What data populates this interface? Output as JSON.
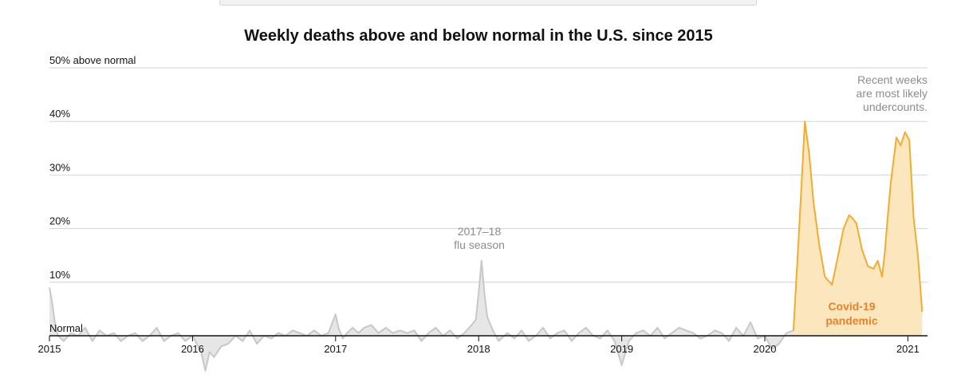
{
  "chart_data": {
    "type": "area",
    "title": "Weekly deaths above and below normal in the U.S. since 2015",
    "xlabel": "",
    "ylabel": "",
    "ylim": [
      -8,
      50
    ],
    "y_ticks": [
      {
        "value": 50,
        "label": "50% above normal"
      },
      {
        "value": 40,
        "label": "40%"
      },
      {
        "value": 30,
        "label": "30%"
      },
      {
        "value": 20,
        "label": "20%"
      },
      {
        "value": 10,
        "label": "10%"
      },
      {
        "value": 0,
        "label": "Normal"
      }
    ],
    "x_ticks": [
      {
        "value": 2015,
        "label": "2015"
      },
      {
        "value": 2016,
        "label": "2016"
      },
      {
        "value": 2017,
        "label": "2017"
      },
      {
        "value": 2018,
        "label": "2018"
      },
      {
        "value": 2019,
        "label": "2019"
      },
      {
        "value": 2020,
        "label": "2020"
      },
      {
        "value": 2021,
        "label": "2021"
      }
    ],
    "grid": true,
    "series": [
      {
        "color": "#c8c8c8",
        "fill": "#e6e6e6",
        "x": [
          2015.0,
          2015.02,
          2015.04,
          2015.06,
          2015.1,
          2015.15,
          2015.2,
          2015.25,
          2015.3,
          2015.35,
          2015.4,
          2015.45,
          2015.5,
          2015.55,
          2015.6,
          2015.65,
          2015.7,
          2015.75,
          2015.8,
          2015.85,
          2015.9,
          2015.95,
          2016.0,
          2016.03,
          2016.06,
          2016.09,
          2016.12,
          2016.15,
          2016.2,
          2016.25,
          2016.3,
          2016.35,
          2016.4,
          2016.45,
          2016.5,
          2016.55,
          2016.6,
          2016.65,
          2016.7,
          2016.75,
          2016.8,
          2016.85,
          2016.9,
          2016.95,
          2017.0,
          2017.02,
          2017.05,
          2017.08,
          2017.12,
          2017.16,
          2017.2,
          2017.25,
          2017.3,
          2017.35,
          2017.4,
          2017.45,
          2017.5,
          2017.55,
          2017.6,
          2017.65,
          2017.7,
          2017.75,
          2017.8,
          2017.85,
          2017.9,
          2017.95,
          2017.98,
          2018.0,
          2018.02,
          2018.04,
          2018.06,
          2018.1,
          2018.14,
          2018.2,
          2018.25,
          2018.3,
          2018.35,
          2018.4,
          2018.45,
          2018.5,
          2018.55,
          2018.6,
          2018.65,
          2018.7,
          2018.75,
          2018.8,
          2018.85,
          2018.9,
          2018.95,
          2019.0,
          2019.05,
          2019.1,
          2019.15,
          2019.2,
          2019.25,
          2019.3,
          2019.35,
          2019.4,
          2019.45,
          2019.5,
          2019.55,
          2019.6,
          2019.65,
          2019.7,
          2019.75,
          2019.8,
          2019.85,
          2019.9,
          2019.95,
          2020.0,
          2020.05,
          2020.1,
          2020.15,
          2020.2
        ],
        "values": [
          9,
          6,
          2,
          0,
          -1,
          0.5,
          0,
          1.5,
          -1,
          1,
          0,
          0.5,
          -1,
          0,
          0.5,
          -1,
          0,
          1.5,
          -1,
          0,
          0.5,
          -1,
          0,
          -1.5,
          -3,
          -6.5,
          -3,
          -4,
          -2,
          -1.5,
          0,
          -1,
          1,
          -1.5,
          0,
          -0.5,
          0.5,
          0,
          1,
          0.5,
          0,
          1,
          0,
          0.5,
          4,
          1.5,
          -0.5,
          0.5,
          1.5,
          0.5,
          1.5,
          2,
          0.5,
          1.5,
          0.5,
          1,
          0.5,
          1,
          -1,
          0.5,
          1.5,
          0,
          1,
          -0.5,
          0.5,
          2,
          3,
          8,
          14,
          8,
          3.5,
          1,
          -1,
          0.5,
          -0.5,
          1,
          -1,
          0,
          1.5,
          -0.5,
          0.5,
          1,
          -1,
          0.5,
          1.5,
          0,
          -0.5,
          1,
          -1,
          -5.5,
          -1,
          0.5,
          1,
          0,
          1.5,
          -0.5,
          0.5,
          1.5,
          1,
          0.5,
          -0.5,
          0,
          1,
          0.5,
          -1,
          1.5,
          0,
          2.5,
          -0.5,
          0,
          -2.5,
          -1.5,
          0.5,
          1
        ]
      },
      {
        "color": "#f0ad30",
        "fill": "#fbe6be",
        "x": [
          2020.2,
          2020.24,
          2020.28,
          2020.31,
          2020.34,
          2020.38,
          2020.42,
          2020.47,
          2020.52,
          2020.55,
          2020.59,
          2020.61,
          2020.64,
          2020.68,
          2020.72,
          2020.76,
          2020.79,
          2020.82,
          2020.84,
          2020.86,
          2020.88,
          2020.92,
          2020.95,
          2020.98,
          2021.01,
          2021.04,
          2021.07,
          2021.1
        ],
        "values": [
          1,
          20,
          40,
          34,
          25,
          17,
          11,
          9.5,
          16,
          20,
          22.5,
          22,
          21,
          16,
          13,
          12.5,
          14,
          11,
          16,
          22.5,
          28.5,
          37,
          35.5,
          38,
          36.5,
          22,
          15,
          4.5
        ]
      }
    ],
    "annotations": {
      "flu_line1": "2017–18",
      "flu_line2": "flu season",
      "recent_line1": "Recent weeks",
      "recent_line2": "are most likely",
      "recent_line3": "undercounts.",
      "covid_line1": "Covid-19",
      "covid_line2": "pandemic"
    }
  }
}
